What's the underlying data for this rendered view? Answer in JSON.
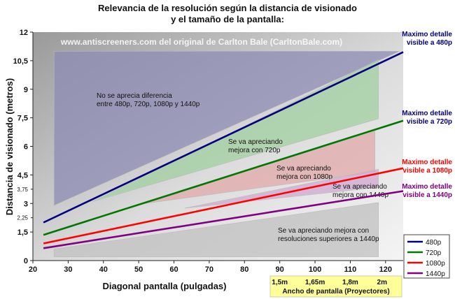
{
  "chart_data": {
    "type": "line",
    "title_line1": "Relevancia de la resolución según la distancia de visionado",
    "title_line2": "y el tamaño de la pantalla:",
    "xlabel": "Diagonal pantalla (pulgadas)",
    "ylabel": "Distancia de visionado (metros)",
    "xlim": [
      20,
      125
    ],
    "ylim": [
      0,
      12
    ],
    "x_ticks": [
      "20",
      "30",
      "40",
      "50",
      "60",
      "70",
      "80",
      "90",
      "100",
      "110",
      "120"
    ],
    "y_ticks_major": [
      "0",
      "1,5",
      "3",
      "4,5",
      "6",
      "7,5",
      "9",
      "10,5",
      "12"
    ],
    "y_ticks_minor": [
      "2,25",
      "3,75"
    ],
    "watermark": "www.antiscreeners.com del original de Carlton Bale (CarltonBale.com)",
    "series": [
      {
        "name": "480p",
        "color": "#000080",
        "x": [
          23,
          125
        ],
        "y": [
          2.0,
          10.95
        ]
      },
      {
        "name": "720p",
        "color": "#007700",
        "x": [
          23,
          125
        ],
        "y": [
          1.35,
          7.35
        ]
      },
      {
        "name": "1080p",
        "color": "#ff0000",
        "x": [
          23,
          125
        ],
        "y": [
          0.9,
          4.85
        ]
      },
      {
        "name": "1440p",
        "color": "#800080",
        "x": [
          23,
          125
        ],
        "y": [
          0.65,
          3.65
        ]
      }
    ],
    "line_labels": [
      {
        "line1": "Maximo detalle",
        "line2": "visible a 480p",
        "color": "#000080"
      },
      {
        "line1": "Maximo detalle",
        "line2": "visible a 720p",
        "color": "#000080"
      },
      {
        "line1": "Maximo detalle",
        "line2": "visible a 1080p",
        "color": "#ff0000"
      },
      {
        "line1": "Maximo detalle",
        "line2": "visible a 1440p",
        "color": "#800080"
      }
    ],
    "regions": [
      {
        "name": "no-difference",
        "line1": "No se aprecia diferencia",
        "line2": "entre 480p, 720p, 1080p y 1440p",
        "fill": "#8c8cb4",
        "x": [
          26,
          124,
          26
        ],
        "y": [
          11.0,
          11.0,
          2.9
        ]
      },
      {
        "name": "720p",
        "line1": "Se va apreciando",
        "line2": "mejora con 720p",
        "fill": "#a0cfa0",
        "x": [
          37,
          118,
          118
        ],
        "y": [
          3.1,
          10.55,
          7.45
        ]
      },
      {
        "name": "1080p",
        "line1": "Se va apreciando",
        "line2": "mejora con 1080p",
        "fill": "#e0a8a8",
        "x": [
          50,
          117,
          117
        ],
        "y": [
          2.95,
          6.8,
          4.65
        ]
      },
      {
        "name": "1440p",
        "line1": "Se va apreciando",
        "line2": "mejora con 1440p",
        "fill": "#cfa8cf",
        "x": [
          63,
          118,
          118
        ],
        "y": [
          2.75,
          4.8,
          3.85
        ]
      },
      {
        "name": "superiores",
        "line1": "Se va apreciando mejora con",
        "line2": "resoluciones superiores a 1440p",
        "fill": "#c0c0c0",
        "x": [
          26,
          118,
          118,
          26
        ],
        "y": [
          0.6,
          3.05,
          0.2,
          0.2
        ]
      }
    ],
    "projector_axis": {
      "label": "Ancho de pantalla (Proyectores)",
      "ticks": [
        {
          "label": "1,5m",
          "x": 90
        },
        {
          "label": "1,65m",
          "x": 100
        },
        {
          "label": "1,8m",
          "x": 110
        },
        {
          "label": "2m",
          "x": 119
        }
      ]
    },
    "legend": {
      "placement": "bottom-right",
      "entries": [
        "480p",
        "720p",
        "1080p",
        "1440p"
      ]
    }
  }
}
